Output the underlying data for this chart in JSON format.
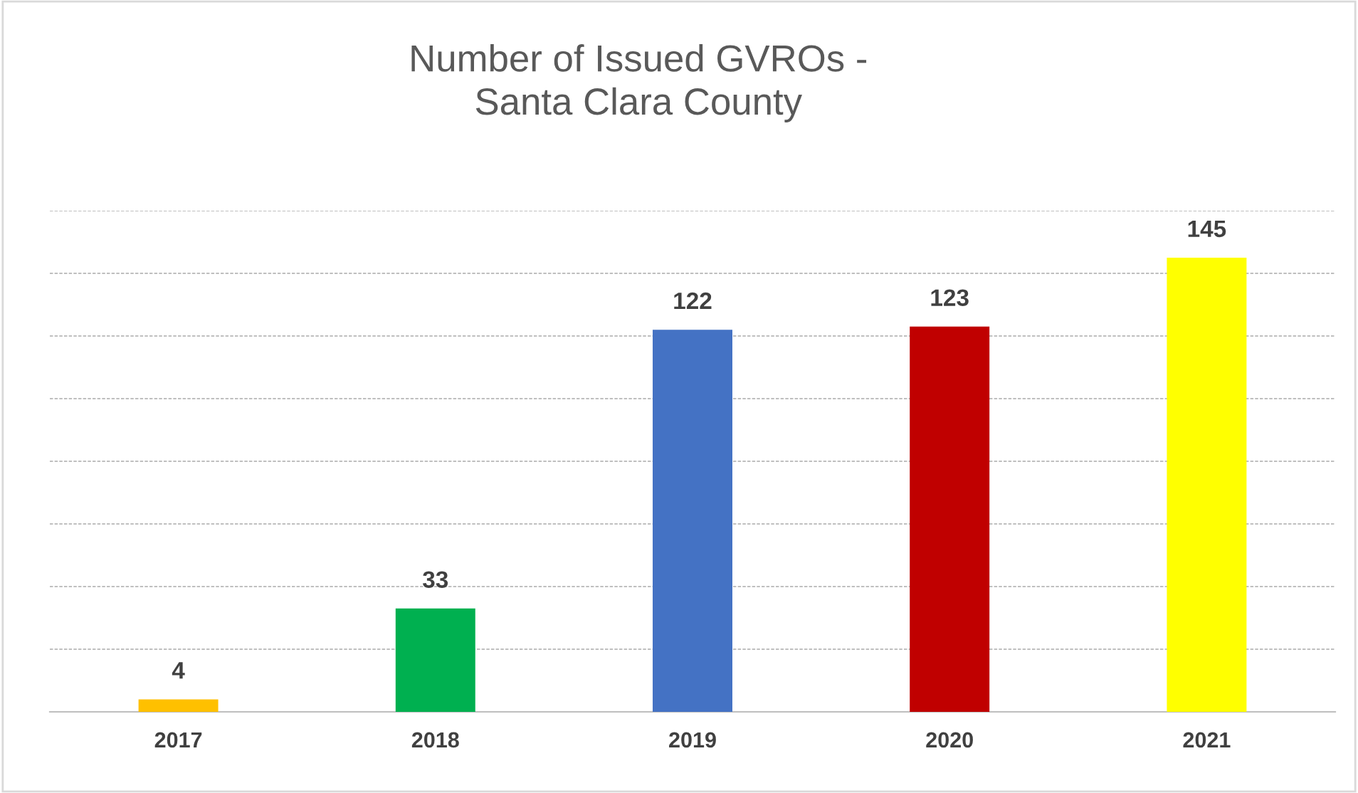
{
  "chart_data": {
    "type": "bar",
    "title": "Number of Issued GVROs -\nSanta Clara County",
    "categories": [
      "2017",
      "2018",
      "2019",
      "2020",
      "2021"
    ],
    "values": [
      4,
      33,
      122,
      123,
      145
    ],
    "colors": [
      "#ffc000",
      "#00b050",
      "#4472c4",
      "#c00000",
      "#ffff00"
    ],
    "ylim": [
      0,
      160
    ],
    "yticks": [
      {
        "value": 0,
        "label": null
      },
      {
        "value": 20,
        "label": null
      },
      {
        "value": 40,
        "label": null
      },
      {
        "value": 60,
        "label": null
      },
      {
        "value": 80,
        "label": null
      },
      {
        "value": 100,
        "label": null
      },
      {
        "value": 120,
        "label": null
      },
      {
        "value": 140,
        "label": null
      },
      {
        "value": 160,
        "label": null
      }
    ],
    "tick_labels": "x",
    "grid": "y",
    "data_labels": true
  }
}
